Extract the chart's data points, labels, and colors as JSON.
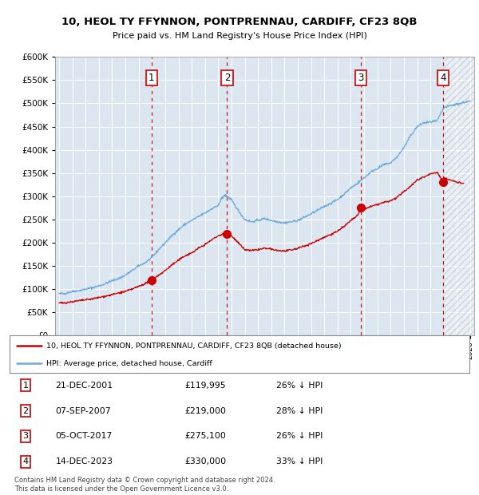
{
  "title": "10, HEOL TY FFYNNON, PONTPRENNAU, CARDIFF, CF23 8QB",
  "subtitle": "Price paid vs. HM Land Registry's House Price Index (HPI)",
  "ylim": [
    0,
    600000
  ],
  "yticks": [
    0,
    50000,
    100000,
    150000,
    200000,
    250000,
    300000,
    350000,
    400000,
    450000,
    500000,
    550000,
    600000
  ],
  "transactions": [
    {
      "num": 1,
      "date": "21-DEC-2001",
      "price": 119995,
      "pct": "26%",
      "x_year": 2001.97
    },
    {
      "num": 2,
      "date": "07-SEP-2007",
      "price": 219000,
      "pct": "28%",
      "x_year": 2007.67
    },
    {
      "num": 3,
      "date": "05-OCT-2017",
      "price": 275100,
      "pct": "26%",
      "x_year": 2017.76
    },
    {
      "num": 4,
      "date": "14-DEC-2023",
      "price": 330000,
      "pct": "33%",
      "x_year": 2023.96
    }
  ],
  "legend_line1": "10, HEOL TY FFYNNON, PONTPRENNAU, CARDIFF, CF23 8QB (detached house)",
  "legend_line2": "HPI: Average price, detached house, Cardiff",
  "footer1": "Contains HM Land Registry data © Crown copyright and database right 2024.",
  "footer2": "This data is licensed under the Open Government Licence v3.0.",
  "hpi_color": "#6aabdc",
  "price_color": "#cc0000",
  "bg_light": "#dce6f1",
  "hatch_start": 2024.0,
  "xlim_left": 1994.7,
  "xlim_right": 2026.3,
  "hpi_anchors": [
    [
      1995.0,
      90000
    ],
    [
      1995.5,
      91000
    ],
    [
      1996.0,
      95000
    ],
    [
      1996.5,
      97000
    ],
    [
      1997.0,
      100000
    ],
    [
      1997.5,
      103000
    ],
    [
      1998.0,
      107000
    ],
    [
      1998.5,
      112000
    ],
    [
      1999.0,
      118000
    ],
    [
      1999.5,
      123000
    ],
    [
      2000.0,
      130000
    ],
    [
      2000.5,
      140000
    ],
    [
      2001.0,
      150000
    ],
    [
      2001.5,
      157000
    ],
    [
      2002.0,
      168000
    ],
    [
      2002.5,
      185000
    ],
    [
      2003.0,
      200000
    ],
    [
      2003.5,
      215000
    ],
    [
      2004.0,
      228000
    ],
    [
      2004.5,
      240000
    ],
    [
      2005.0,
      248000
    ],
    [
      2005.5,
      256000
    ],
    [
      2006.0,
      264000
    ],
    [
      2006.5,
      273000
    ],
    [
      2007.0,
      280000
    ],
    [
      2007.25,
      295000
    ],
    [
      2007.5,
      302000
    ],
    [
      2007.67,
      300000
    ],
    [
      2008.0,
      292000
    ],
    [
      2008.5,
      270000
    ],
    [
      2009.0,
      250000
    ],
    [
      2009.5,
      245000
    ],
    [
      2010.0,
      248000
    ],
    [
      2010.5,
      252000
    ],
    [
      2011.0,
      248000
    ],
    [
      2011.5,
      245000
    ],
    [
      2012.0,
      243000
    ],
    [
      2012.5,
      245000
    ],
    [
      2013.0,
      248000
    ],
    [
      2013.5,
      255000
    ],
    [
      2014.0,
      262000
    ],
    [
      2014.5,
      270000
    ],
    [
      2015.0,
      278000
    ],
    [
      2015.5,
      285000
    ],
    [
      2016.0,
      293000
    ],
    [
      2016.5,
      305000
    ],
    [
      2017.0,
      318000
    ],
    [
      2017.5,
      328000
    ],
    [
      2018.0,
      340000
    ],
    [
      2018.5,
      352000
    ],
    [
      2019.0,
      360000
    ],
    [
      2019.5,
      368000
    ],
    [
      2020.0,
      372000
    ],
    [
      2020.5,
      385000
    ],
    [
      2021.0,
      405000
    ],
    [
      2021.5,
      430000
    ],
    [
      2022.0,
      450000
    ],
    [
      2022.5,
      458000
    ],
    [
      2023.0,
      460000
    ],
    [
      2023.5,
      462000
    ],
    [
      2024.0,
      490000
    ],
    [
      2024.5,
      495000
    ],
    [
      2025.0,
      498000
    ],
    [
      2025.5,
      502000
    ],
    [
      2026.0,
      505000
    ]
  ],
  "pp_anchors": [
    [
      1995.0,
      70000
    ],
    [
      1995.5,
      71000
    ],
    [
      1996.0,
      73000
    ],
    [
      1996.5,
      75000
    ],
    [
      1997.0,
      77000
    ],
    [
      1997.5,
      79000
    ],
    [
      1998.0,
      82000
    ],
    [
      1998.5,
      85000
    ],
    [
      1999.0,
      88000
    ],
    [
      1999.5,
      92000
    ],
    [
      2000.0,
      95000
    ],
    [
      2000.5,
      100000
    ],
    [
      2001.0,
      106000
    ],
    [
      2001.5,
      112000
    ],
    [
      2001.97,
      119995
    ],
    [
      2002.5,
      130000
    ],
    [
      2003.0,
      140000
    ],
    [
      2003.5,
      152000
    ],
    [
      2004.0,
      162000
    ],
    [
      2004.5,
      172000
    ],
    [
      2005.0,
      178000
    ],
    [
      2005.5,
      188000
    ],
    [
      2006.0,
      196000
    ],
    [
      2006.5,
      206000
    ],
    [
      2007.0,
      215000
    ],
    [
      2007.5,
      220000
    ],
    [
      2007.67,
      219000
    ],
    [
      2008.0,
      215000
    ],
    [
      2008.5,
      200000
    ],
    [
      2009.0,
      185000
    ],
    [
      2009.5,
      183000
    ],
    [
      2010.0,
      185000
    ],
    [
      2010.5,
      188000
    ],
    [
      2011.0,
      186000
    ],
    [
      2011.5,
      183000
    ],
    [
      2012.0,
      182000
    ],
    [
      2012.5,
      184000
    ],
    [
      2013.0,
      188000
    ],
    [
      2013.5,
      193000
    ],
    [
      2014.0,
      198000
    ],
    [
      2014.5,
      205000
    ],
    [
      2015.0,
      212000
    ],
    [
      2015.5,
      218000
    ],
    [
      2016.0,
      225000
    ],
    [
      2016.5,
      235000
    ],
    [
      2017.0,
      248000
    ],
    [
      2017.5,
      258000
    ],
    [
      2017.76,
      275100
    ],
    [
      2018.0,
      272000
    ],
    [
      2018.5,
      278000
    ],
    [
      2019.0,
      282000
    ],
    [
      2019.5,
      287000
    ],
    [
      2020.0,
      290000
    ],
    [
      2020.5,
      298000
    ],
    [
      2021.0,
      310000
    ],
    [
      2021.5,
      322000
    ],
    [
      2022.0,
      335000
    ],
    [
      2022.5,
      342000
    ],
    [
      2023.0,
      348000
    ],
    [
      2023.5,
      352000
    ],
    [
      2023.96,
      330000
    ],
    [
      2024.0,
      340000
    ],
    [
      2024.5,
      335000
    ],
    [
      2025.0,
      330000
    ],
    [
      2025.5,
      328000
    ]
  ]
}
